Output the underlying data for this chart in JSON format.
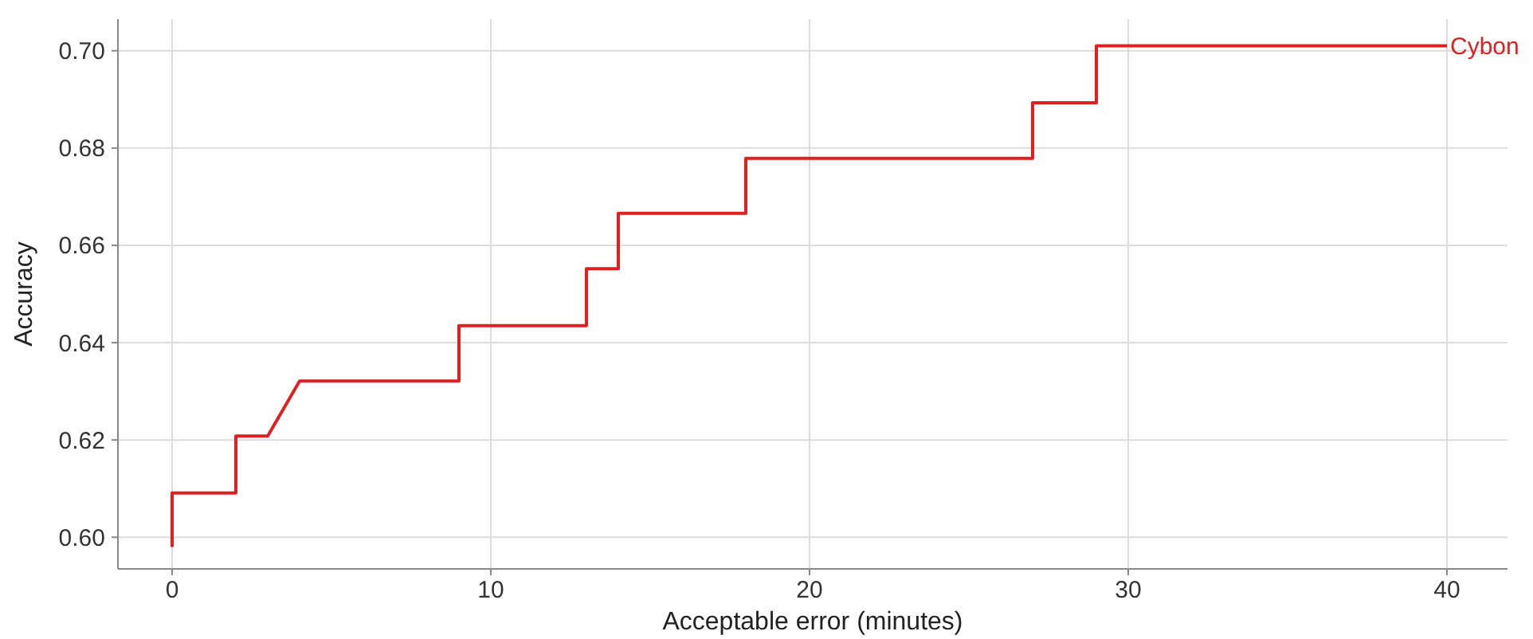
{
  "chart_data": {
    "type": "line",
    "xlabel": "Acceptable error (minutes)",
    "ylabel": "Accuracy",
    "xlim": [
      -1.7,
      41.9
    ],
    "xticks": [
      0,
      10,
      20,
      30,
      40
    ],
    "ylim": [
      0.5935,
      0.7065
    ],
    "yticks": [
      {
        "value": 0.6,
        "label": "0.60"
      },
      {
        "value": 0.62,
        "label": "0.62"
      },
      {
        "value": 0.64,
        "label": "0.64"
      },
      {
        "value": 0.66,
        "label": "0.66"
      },
      {
        "value": 0.68,
        "label": "0.68"
      },
      {
        "value": 0.7,
        "label": "0.70"
      }
    ],
    "grid": true,
    "legend": false,
    "marker": "none",
    "line_style": "solid",
    "series": [
      {
        "name": "Cybon",
        "color": "#e02020",
        "x": [
          0,
          0,
          2,
          2,
          3,
          4,
          9,
          9,
          13,
          13,
          14,
          14,
          18,
          18,
          27,
          27,
          29,
          29,
          40
        ],
        "values": [
          0.598,
          0.6091,
          0.6091,
          0.6208,
          0.6208,
          0.6321,
          0.6321,
          0.6435,
          0.6435,
          0.6552,
          0.6552,
          0.6666,
          0.6666,
          0.6779,
          0.6779,
          0.6893,
          0.6893,
          0.701,
          0.701
        ]
      }
    ]
  }
}
